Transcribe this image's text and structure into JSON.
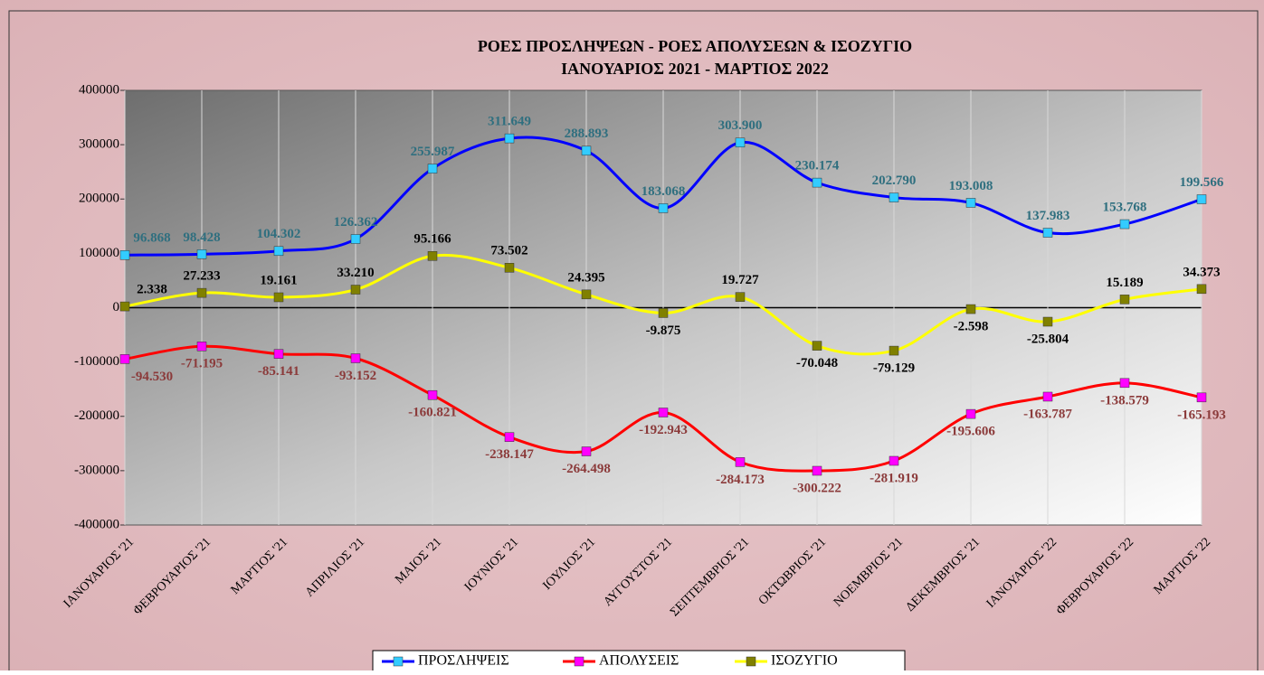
{
  "chart_data": {
    "type": "line",
    "title": "ΡΟΕΣ ΠΡΟΣΛΗΨΕΩΝ -  ΡΟΕΣ ΑΠΟΛΥΣΕΩΝ  & ΙΣΟΖΥΓΙΟ",
    "subtitle": "ΙΑΝΟΥΑΡΙΟΣ 2021  -  ΜΑΡΤΙΟΣ  2022",
    "categories": [
      "ΙΑΝΟΥΑΡΙΟΣ '21",
      "ΦΕΒΡΟΥΑΡΙΟΣ '21",
      "ΜΑΡΤΙΟΣ '21",
      "ΑΠΡΙΛΙΟΣ '21",
      "ΜΑΙΟΣ '21",
      "ΙΟΥΝΙΟΣ '21",
      "ΙΟΥΛΙΟΣ '21",
      "ΑΥΓΟΥΣΤΟΣ '21",
      "ΣΕΠΤΕΜΒΡΙΟΣ '21",
      "ΟΚΤΩΒΡΙΟΣ '21",
      "ΝΟΕΜΒΡΙΟΣ '21",
      "ΔΕΚΕΜΒΡΙΟΣ '21",
      "ΙΑΝΟΥΑΡΙΟΣ '22",
      "ΦΕΒΡΟΥΑΡΙΟΣ '22",
      "ΜΑΡΤΙΟΣ '22"
    ],
    "series": [
      {
        "name": "ΠΡΟΣΛΗΨΕΙΣ",
        "color": "#0000ff",
        "marker_color": "#33ccff",
        "label_color": "#2f6f7f",
        "values": [
          96868,
          98428,
          104302,
          126362,
          255987,
          311649,
          288893,
          183068,
          303900,
          230174,
          202790,
          193008,
          137983,
          153768,
          199566
        ],
        "value_labels": [
          "96.868",
          "98.428",
          "104.302",
          "126.362",
          "255.987",
          "311.649",
          "288.893",
          "183.068",
          "303.900",
          "230.174",
          "202.790",
          "193.008",
          "137.983",
          "153.768",
          "199.566"
        ]
      },
      {
        "name": "ΑΠΟΛΥΣΕΙΣ",
        "color": "#ff0000",
        "marker_color": "#ff00ff",
        "label_color": "#8b3a3a",
        "values": [
          -94530,
          -71195,
          -85141,
          -93152,
          -160821,
          -238147,
          -264498,
          -192943,
          -284173,
          -300222,
          -281919,
          -195606,
          -163787,
          -138579,
          -165193
        ],
        "value_labels": [
          "-94.530",
          "-71.195",
          "-85.141",
          "-93.152",
          "-160.821",
          "-238.147",
          "-264.498",
          "-192.943",
          "-284.173",
          "-300.222",
          "-281.919",
          "-195.606",
          "-163.787",
          "-138.579",
          "-165.193"
        ]
      },
      {
        "name": "ΙΣΟΖΥΓΙΟ",
        "color": "#ffff00",
        "marker_color": "#808000",
        "label_color": "#000000",
        "values": [
          2338,
          27233,
          19161,
          33210,
          95166,
          73502,
          24395,
          -9875,
          19727,
          -70048,
          -79129,
          -2598,
          -25804,
          15189,
          34373
        ],
        "value_labels": [
          "2.338",
          "27.233",
          "19.161",
          "33.210",
          "95.166",
          "73.502",
          "24.395",
          "-9.875",
          "19.727",
          "-70.048",
          "-79.129",
          "-2.598",
          "-25.804",
          "15.189",
          "34.373"
        ]
      }
    ],
    "ylim": [
      -400000,
      400000
    ],
    "yticks": [
      -400000,
      -300000,
      -200000,
      -100000,
      0,
      100000,
      200000,
      300000,
      400000
    ],
    "grid": true,
    "legend": "bottom"
  }
}
